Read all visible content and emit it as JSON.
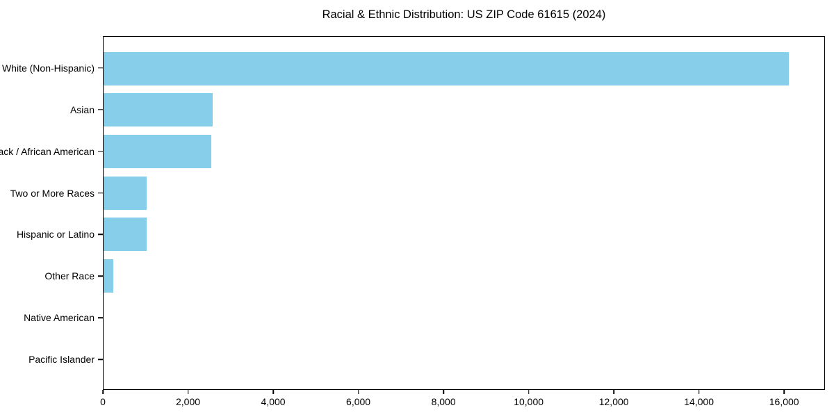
{
  "figure": {
    "background": "#ffffff",
    "text_color": "#000000"
  },
  "chart_data": {
    "type": "bar",
    "orientation": "horizontal",
    "title": "Racial & Ethnic Distribution: US ZIP Code 61615 (2024)",
    "xlabel": "",
    "ylabel": "",
    "categories": [
      "White (Non-Hispanic)",
      "Asian",
      "Black / African American",
      "Two or More Races",
      "Hispanic or Latino",
      "Other Race",
      "Native American",
      "Pacific Islander"
    ],
    "values": [
      16130,
      2570,
      2530,
      1010,
      1010,
      230,
      0,
      0
    ],
    "xlim": [
      0,
      16960
    ],
    "x_ticks": [
      {
        "value": 0,
        "label": "0"
      },
      {
        "value": 2000,
        "label": "2,000"
      },
      {
        "value": 4000,
        "label": "4,000"
      },
      {
        "value": 6000,
        "label": "6,000"
      },
      {
        "value": 8000,
        "label": "8,000"
      },
      {
        "value": 10000,
        "label": "10,000"
      },
      {
        "value": 12000,
        "label": "12,000"
      },
      {
        "value": 14000,
        "label": "14,000"
      },
      {
        "value": 16000,
        "label": "16,000"
      }
    ],
    "bar_color": "#87CEEB",
    "axis_color": "#000000",
    "grid": false,
    "legend": null
  }
}
